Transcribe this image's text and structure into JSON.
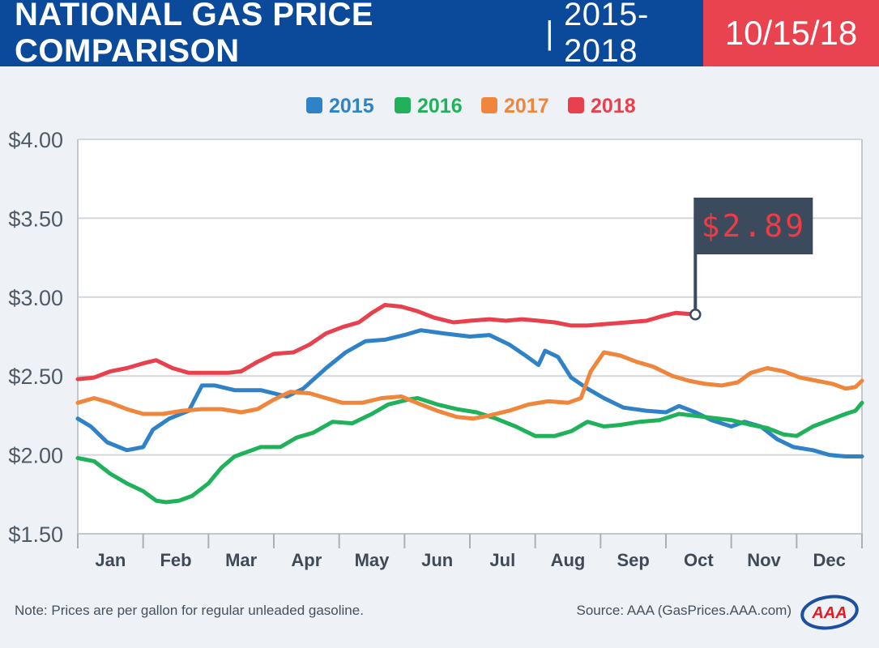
{
  "header": {
    "title": "NATIONAL GAS PRICE COMPARISON",
    "separator": "|",
    "years": "2015-2018",
    "date": "10/15/18"
  },
  "colors": {
    "header_blue": "#0b4a9a",
    "header_red": "#e8434f",
    "background": "#eef2f7",
    "flag": "#3b4a5c",
    "flag_text": "#ef3b44"
  },
  "chart_data": {
    "type": "line",
    "title": "NATIONAL GAS PRICE COMPARISON | 2015-2018",
    "xlabel": "",
    "ylabel": "",
    "ylim": [
      1.5,
      4.0
    ],
    "xlim": [
      0,
      12
    ],
    "grid": true,
    "legend_position": "top-center",
    "y_ticks": [
      {
        "value": 4.0,
        "label": "$4.00"
      },
      {
        "value": 3.5,
        "label": "$3.50"
      },
      {
        "value": 3.0,
        "label": "$3.00"
      },
      {
        "value": 2.5,
        "label": "$2.50"
      },
      {
        "value": 2.0,
        "label": "$2.00"
      },
      {
        "value": 1.5,
        "label": "$1.50"
      }
    ],
    "x_categories": [
      "Jan",
      "Feb",
      "Mar",
      "Apr",
      "May",
      "Jun",
      "Jul",
      "Aug",
      "Sep",
      "Oct",
      "Nov",
      "Dec"
    ],
    "series": [
      {
        "name": "2015",
        "color": "#2f82c6",
        "points": [
          [
            0,
            2.23
          ],
          [
            0.2,
            2.18
          ],
          [
            0.45,
            2.08
          ],
          [
            0.75,
            2.03
          ],
          [
            1.0,
            2.05
          ],
          [
            1.15,
            2.16
          ],
          [
            1.4,
            2.23
          ],
          [
            1.7,
            2.28
          ],
          [
            1.9,
            2.44
          ],
          [
            2.1,
            2.44
          ],
          [
            2.4,
            2.41
          ],
          [
            2.8,
            2.41
          ],
          [
            3.2,
            2.37
          ],
          [
            3.45,
            2.42
          ],
          [
            3.8,
            2.55
          ],
          [
            4.1,
            2.65
          ],
          [
            4.4,
            2.72
          ],
          [
            4.7,
            2.73
          ],
          [
            5.0,
            2.76
          ],
          [
            5.25,
            2.79
          ],
          [
            5.6,
            2.77
          ],
          [
            6.0,
            2.75
          ],
          [
            6.3,
            2.76
          ],
          [
            6.6,
            2.7
          ],
          [
            6.85,
            2.63
          ],
          [
            7.05,
            2.57
          ],
          [
            7.15,
            2.66
          ],
          [
            7.35,
            2.62
          ],
          [
            7.55,
            2.49
          ],
          [
            7.8,
            2.42
          ],
          [
            8.05,
            2.36
          ],
          [
            8.35,
            2.3
          ],
          [
            8.7,
            2.28
          ],
          [
            9.0,
            2.27
          ],
          [
            9.2,
            2.31
          ],
          [
            9.45,
            2.27
          ],
          [
            9.7,
            2.22
          ],
          [
            10.0,
            2.18
          ],
          [
            10.2,
            2.21
          ],
          [
            10.45,
            2.18
          ],
          [
            10.7,
            2.1
          ],
          [
            10.95,
            2.05
          ],
          [
            11.25,
            2.03
          ],
          [
            11.5,
            2.0
          ],
          [
            11.75,
            1.99
          ],
          [
            12.0,
            1.99
          ]
        ]
      },
      {
        "name": "2016",
        "color": "#1fb25a",
        "points": [
          [
            0,
            1.98
          ],
          [
            0.25,
            1.96
          ],
          [
            0.5,
            1.88
          ],
          [
            0.75,
            1.82
          ],
          [
            1.0,
            1.77
          ],
          [
            1.2,
            1.71
          ],
          [
            1.35,
            1.7
          ],
          [
            1.55,
            1.71
          ],
          [
            1.75,
            1.74
          ],
          [
            2.0,
            1.82
          ],
          [
            2.2,
            1.92
          ],
          [
            2.4,
            1.99
          ],
          [
            2.6,
            2.02
          ],
          [
            2.8,
            2.05
          ],
          [
            3.1,
            2.05
          ],
          [
            3.35,
            2.11
          ],
          [
            3.6,
            2.14
          ],
          [
            3.9,
            2.21
          ],
          [
            4.2,
            2.2
          ],
          [
            4.5,
            2.26
          ],
          [
            4.75,
            2.32
          ],
          [
            5.05,
            2.35
          ],
          [
            5.2,
            2.36
          ],
          [
            5.5,
            2.32
          ],
          [
            5.8,
            2.29
          ],
          [
            6.1,
            2.27
          ],
          [
            6.4,
            2.23
          ],
          [
            6.7,
            2.18
          ],
          [
            7.0,
            2.12
          ],
          [
            7.3,
            2.12
          ],
          [
            7.55,
            2.15
          ],
          [
            7.8,
            2.21
          ],
          [
            8.05,
            2.18
          ],
          [
            8.3,
            2.19
          ],
          [
            8.6,
            2.21
          ],
          [
            8.9,
            2.22
          ],
          [
            9.2,
            2.26
          ],
          [
            9.6,
            2.24
          ],
          [
            10.0,
            2.22
          ],
          [
            10.3,
            2.19
          ],
          [
            10.55,
            2.17
          ],
          [
            10.8,
            2.13
          ],
          [
            11.0,
            2.12
          ],
          [
            11.25,
            2.18
          ],
          [
            11.5,
            2.22
          ],
          [
            11.75,
            2.26
          ],
          [
            11.9,
            2.28
          ],
          [
            12.0,
            2.33
          ]
        ]
      },
      {
        "name": "2017",
        "color": "#f0853c",
        "points": [
          [
            0,
            2.33
          ],
          [
            0.25,
            2.36
          ],
          [
            0.5,
            2.33
          ],
          [
            0.75,
            2.29
          ],
          [
            1.0,
            2.26
          ],
          [
            1.3,
            2.26
          ],
          [
            1.6,
            2.28
          ],
          [
            1.9,
            2.29
          ],
          [
            2.2,
            2.29
          ],
          [
            2.5,
            2.27
          ],
          [
            2.75,
            2.29
          ],
          [
            3.0,
            2.35
          ],
          [
            3.25,
            2.4
          ],
          [
            3.55,
            2.39
          ],
          [
            3.8,
            2.36
          ],
          [
            4.05,
            2.33
          ],
          [
            4.35,
            2.33
          ],
          [
            4.65,
            2.36
          ],
          [
            4.95,
            2.37
          ],
          [
            5.25,
            2.32
          ],
          [
            5.5,
            2.28
          ],
          [
            5.8,
            2.24
          ],
          [
            6.05,
            2.23
          ],
          [
            6.3,
            2.25
          ],
          [
            6.6,
            2.28
          ],
          [
            6.9,
            2.32
          ],
          [
            7.2,
            2.34
          ],
          [
            7.5,
            2.33
          ],
          [
            7.7,
            2.36
          ],
          [
            7.85,
            2.53
          ],
          [
            8.05,
            2.65
          ],
          [
            8.3,
            2.63
          ],
          [
            8.55,
            2.59
          ],
          [
            8.8,
            2.56
          ],
          [
            9.1,
            2.5
          ],
          [
            9.35,
            2.47
          ],
          [
            9.6,
            2.45
          ],
          [
            9.85,
            2.44
          ],
          [
            10.1,
            2.46
          ],
          [
            10.3,
            2.52
          ],
          [
            10.55,
            2.55
          ],
          [
            10.8,
            2.53
          ],
          [
            11.05,
            2.49
          ],
          [
            11.3,
            2.47
          ],
          [
            11.55,
            2.45
          ],
          [
            11.75,
            2.42
          ],
          [
            11.9,
            2.43
          ],
          [
            12.0,
            2.47
          ]
        ]
      },
      {
        "name": "2018",
        "color": "#e8404c",
        "points": [
          [
            0,
            2.48
          ],
          [
            0.25,
            2.49
          ],
          [
            0.5,
            2.53
          ],
          [
            0.75,
            2.55
          ],
          [
            1.0,
            2.58
          ],
          [
            1.2,
            2.6
          ],
          [
            1.45,
            2.55
          ],
          [
            1.7,
            2.52
          ],
          [
            2.0,
            2.52
          ],
          [
            2.3,
            2.52
          ],
          [
            2.5,
            2.53
          ],
          [
            2.75,
            2.59
          ],
          [
            3.0,
            2.64
          ],
          [
            3.3,
            2.65
          ],
          [
            3.55,
            2.7
          ],
          [
            3.8,
            2.77
          ],
          [
            4.05,
            2.81
          ],
          [
            4.3,
            2.84
          ],
          [
            4.5,
            2.9
          ],
          [
            4.7,
            2.95
          ],
          [
            4.95,
            2.94
          ],
          [
            5.2,
            2.91
          ],
          [
            5.45,
            2.87
          ],
          [
            5.75,
            2.84
          ],
          [
            6.0,
            2.85
          ],
          [
            6.3,
            2.86
          ],
          [
            6.55,
            2.85
          ],
          [
            6.8,
            2.86
          ],
          [
            7.05,
            2.85
          ],
          [
            7.3,
            2.84
          ],
          [
            7.55,
            2.82
          ],
          [
            7.8,
            2.82
          ],
          [
            8.1,
            2.83
          ],
          [
            8.4,
            2.84
          ],
          [
            8.7,
            2.85
          ],
          [
            8.95,
            2.88
          ],
          [
            9.15,
            2.9
          ],
          [
            9.45,
            2.89
          ]
        ]
      }
    ],
    "annotation": {
      "label": "$2.89",
      "value": 2.89,
      "x": 9.45,
      "series": "2018"
    }
  },
  "footer": {
    "note": "Note: Prices are per gallon for regular unleaded gasoline.",
    "source": "Source: AAA (GasPrices.AAA.com)",
    "logo_text": "AAA"
  }
}
